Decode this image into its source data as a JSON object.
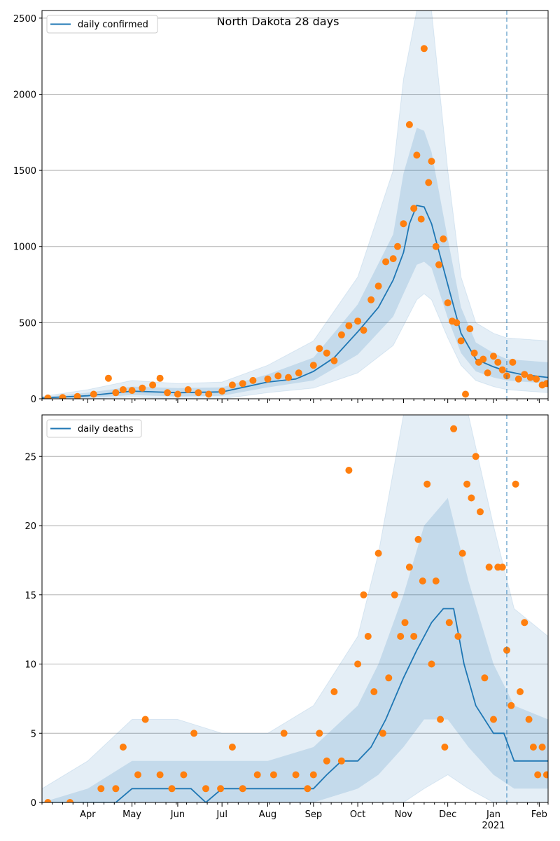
{
  "figure": {
    "title": "North Dakota 28 days"
  },
  "colors": {
    "model": "#1f77b4",
    "observed": "#ff7f0e",
    "band": "#1f77b4",
    "grid": "#b0b0b0",
    "marker": "#1f77b4"
  },
  "x_axis": {
    "start": "2020-03-01",
    "end": "2021-02-07",
    "ticks": [
      {
        "date": "2020-04-01",
        "label": "Apr"
      },
      {
        "date": "2020-05-01",
        "label": "May"
      },
      {
        "date": "2020-06-01",
        "label": "Jun"
      },
      {
        "date": "2020-07-01",
        "label": "Jul"
      },
      {
        "date": "2020-08-01",
        "label": "Aug"
      },
      {
        "date": "2020-09-01",
        "label": "Sep"
      },
      {
        "date": "2020-10-01",
        "label": "Oct"
      },
      {
        "date": "2020-11-01",
        "label": "Nov"
      },
      {
        "date": "2020-12-01",
        "label": "Dec"
      },
      {
        "date": "2021-01-01",
        "label": "Jan"
      },
      {
        "date": "2021-02-01",
        "label": "Feb"
      }
    ],
    "year_label": "2021",
    "forecast_marker_date": "2021-01-10"
  },
  "chart_data": [
    {
      "type": "line",
      "title": "North Dakota 28 days",
      "legend": {
        "label": "daily confirmed",
        "placement": "top-left"
      },
      "ylim": [
        0,
        2550
      ],
      "yticks": [
        0,
        500,
        1000,
        1500,
        2000,
        2500
      ],
      "grid": true,
      "model_series": {
        "name": "daily confirmed",
        "x": [
          "2020-03-01",
          "2020-04-01",
          "2020-05-01",
          "2020-06-01",
          "2020-07-01",
          "2020-08-01",
          "2020-08-20",
          "2020-09-01",
          "2020-09-15",
          "2020-10-01",
          "2020-10-15",
          "2020-10-25",
          "2020-11-01",
          "2020-11-05",
          "2020-11-10",
          "2020-11-15",
          "2020-11-20",
          "2020-12-01",
          "2020-12-10",
          "2020-12-20",
          "2021-01-01",
          "2021-01-10",
          "2021-01-20",
          "2021-02-07"
        ],
        "y": [
          5,
          20,
          50,
          40,
          45,
          110,
          130,
          180,
          270,
          440,
          600,
          780,
          960,
          1150,
          1270,
          1260,
          1150,
          750,
          430,
          260,
          210,
          180,
          160,
          140
        ]
      },
      "bands": {
        "x": [
          "2020-03-01",
          "2020-04-01",
          "2020-05-01",
          "2020-06-01",
          "2020-07-01",
          "2020-08-01",
          "2020-09-01",
          "2020-10-01",
          "2020-10-25",
          "2020-11-01",
          "2020-11-10",
          "2020-11-15",
          "2020-11-20",
          "2020-12-01",
          "2020-12-10",
          "2020-12-20",
          "2021-01-01",
          "2021-01-10",
          "2021-02-07"
        ],
        "outer_low": [
          0,
          0,
          10,
          0,
          0,
          40,
          70,
          170,
          350,
          480,
          650,
          690,
          650,
          400,
          220,
          120,
          80,
          60,
          40
        ],
        "outer_high": [
          15,
          60,
          120,
          100,
          110,
          220,
          380,
          800,
          1500,
          2100,
          2550,
          2550,
          2550,
          1500,
          800,
          500,
          430,
          400,
          380
        ],
        "inner_low": [
          0,
          5,
          25,
          15,
          20,
          75,
          120,
          290,
          540,
          690,
          880,
          900,
          860,
          530,
          300,
          180,
          140,
          120,
          100
        ],
        "inner_high": [
          10,
          40,
          80,
          70,
          75,
          160,
          270,
          620,
          1080,
          1480,
          1780,
          1760,
          1620,
          1050,
          600,
          370,
          300,
          260,
          240
        ]
      },
      "observed": {
        "x": [
          "2020-03-05",
          "2020-03-15",
          "2020-03-25",
          "2020-04-05",
          "2020-04-15",
          "2020-04-20",
          "2020-04-25",
          "2020-05-01",
          "2020-05-08",
          "2020-05-15",
          "2020-05-20",
          "2020-05-25",
          "2020-06-01",
          "2020-06-08",
          "2020-06-15",
          "2020-06-22",
          "2020-07-01",
          "2020-07-08",
          "2020-07-15",
          "2020-07-22",
          "2020-08-01",
          "2020-08-08",
          "2020-08-15",
          "2020-08-22",
          "2020-09-01",
          "2020-09-05",
          "2020-09-10",
          "2020-09-15",
          "2020-09-20",
          "2020-09-25",
          "2020-10-01",
          "2020-10-05",
          "2020-10-10",
          "2020-10-15",
          "2020-10-20",
          "2020-10-25",
          "2020-10-28",
          "2020-11-01",
          "2020-11-05",
          "2020-11-08",
          "2020-11-10",
          "2020-11-13",
          "2020-11-15",
          "2020-11-18",
          "2020-11-20",
          "2020-11-23",
          "2020-11-25",
          "2020-11-28",
          "2020-12-01",
          "2020-12-04",
          "2020-12-07",
          "2020-12-10",
          "2020-12-13",
          "2020-12-16",
          "2020-12-19",
          "2020-12-22",
          "2020-12-25",
          "2020-12-28",
          "2021-01-01",
          "2021-01-04",
          "2021-01-07",
          "2021-01-10",
          "2021-01-14",
          "2021-01-18",
          "2021-01-22",
          "2021-01-26",
          "2021-01-30",
          "2021-02-03",
          "2021-02-06"
        ],
        "y": [
          5,
          8,
          15,
          30,
          135,
          40,
          60,
          55,
          70,
          90,
          135,
          40,
          30,
          60,
          40,
          30,
          50,
          90,
          100,
          120,
          130,
          150,
          140,
          170,
          220,
          330,
          300,
          250,
          420,
          480,
          510,
          450,
          650,
          740,
          900,
          920,
          1000,
          1150,
          1800,
          1250,
          1600,
          1180,
          2300,
          1420,
          1560,
          1000,
          880,
          1050,
          630,
          510,
          500,
          380,
          30,
          460,
          300,
          240,
          260,
          170,
          280,
          240,
          190,
          150,
          240,
          130,
          160,
          140,
          130,
          90,
          100
        ]
      }
    },
    {
      "type": "line",
      "legend": {
        "label": "daily deaths",
        "placement": "top-left"
      },
      "ylim": [
        0,
        28
      ],
      "yticks": [
        0,
        5,
        10,
        15,
        20,
        25
      ],
      "grid": true,
      "model_series": {
        "name": "daily deaths",
        "x": [
          "2020-03-01",
          "2020-04-01",
          "2020-04-20",
          "2020-05-01",
          "2020-06-01",
          "2020-06-10",
          "2020-06-20",
          "2020-07-01",
          "2020-08-01",
          "2020-08-15",
          "2020-09-01",
          "2020-09-10",
          "2020-09-20",
          "2020-10-01",
          "2020-10-10",
          "2020-10-20",
          "2020-11-01",
          "2020-11-10",
          "2020-11-20",
          "2020-11-28",
          "2020-12-05",
          "2020-12-12",
          "2020-12-20",
          "2021-01-01",
          "2021-01-08",
          "2021-01-15",
          "2021-01-25",
          "2021-02-07"
        ],
        "y": [
          0,
          0,
          0,
          1,
          1,
          1,
          0,
          1,
          1,
          1,
          1,
          2,
          3,
          3,
          4,
          6,
          9,
          11,
          13,
          14,
          14,
          10,
          7,
          5,
          5,
          3,
          3,
          3
        ]
      },
      "bands": {
        "x": [
          "2020-03-01",
          "2020-04-01",
          "2020-05-01",
          "2020-06-01",
          "2020-07-01",
          "2020-08-01",
          "2020-09-01",
          "2020-10-01",
          "2020-10-15",
          "2020-11-01",
          "2020-11-15",
          "2020-12-01",
          "2020-12-15",
          "2021-01-01",
          "2021-01-15",
          "2021-02-07"
        ],
        "outer_low": [
          0,
          0,
          0,
          0,
          0,
          0,
          0,
          0,
          0,
          0,
          1,
          2,
          1,
          0,
          0,
          0
        ],
        "outer_high": [
          1,
          3,
          6,
          6,
          5,
          5,
          7,
          12,
          18,
          28,
          28,
          28,
          28,
          20,
          14,
          12
        ],
        "inner_low": [
          0,
          0,
          0,
          0,
          0,
          0,
          0,
          1,
          2,
          4,
          6,
          6,
          4,
          2,
          1,
          1
        ],
        "inner_high": [
          0,
          1,
          3,
          3,
          3,
          3,
          4,
          7,
          10,
          15,
          20,
          22,
          16,
          10,
          7,
          6
        ]
      },
      "observed": {
        "x": [
          "2020-03-05",
          "2020-03-20",
          "2020-04-10",
          "2020-04-20",
          "2020-04-25",
          "2020-05-05",
          "2020-05-10",
          "2020-05-20",
          "2020-05-28",
          "2020-06-05",
          "2020-06-12",
          "2020-06-20",
          "2020-06-30",
          "2020-07-08",
          "2020-07-15",
          "2020-07-25",
          "2020-08-05",
          "2020-08-12",
          "2020-08-20",
          "2020-08-28",
          "2020-09-01",
          "2020-09-05",
          "2020-09-10",
          "2020-09-15",
          "2020-09-20",
          "2020-09-25",
          "2020-10-01",
          "2020-10-05",
          "2020-10-08",
          "2020-10-12",
          "2020-10-15",
          "2020-10-18",
          "2020-10-22",
          "2020-10-26",
          "2020-10-30",
          "2020-11-02",
          "2020-11-05",
          "2020-11-08",
          "2020-11-11",
          "2020-11-14",
          "2020-11-17",
          "2020-11-20",
          "2020-11-23",
          "2020-11-26",
          "2020-11-29",
          "2020-12-02",
          "2020-12-05",
          "2020-12-08",
          "2020-12-11",
          "2020-12-14",
          "2020-12-17",
          "2020-12-20",
          "2020-12-23",
          "2020-12-26",
          "2020-12-29",
          "2021-01-01",
          "2021-01-04",
          "2021-01-07",
          "2021-01-10",
          "2021-01-13",
          "2021-01-16",
          "2021-01-19",
          "2021-01-22",
          "2021-01-25",
          "2021-01-28",
          "2021-01-31",
          "2021-02-03",
          "2021-02-06"
        ],
        "y": [
          0,
          0,
          1,
          1,
          4,
          2,
          6,
          2,
          1,
          2,
          5,
          1,
          1,
          4,
          1,
          2,
          2,
          5,
          2,
          1,
          2,
          5,
          3,
          8,
          3,
          24,
          10,
          15,
          12,
          8,
          18,
          5,
          9,
          15,
          12,
          13,
          17,
          12,
          19,
          16,
          23,
          10,
          16,
          6,
          4,
          13,
          27,
          12,
          18,
          23,
          22,
          25,
          21,
          9,
          17,
          6,
          17,
          17,
          11,
          7,
          23,
          8,
          13,
          6,
          4,
          2,
          4,
          2
        ]
      }
    }
  ]
}
